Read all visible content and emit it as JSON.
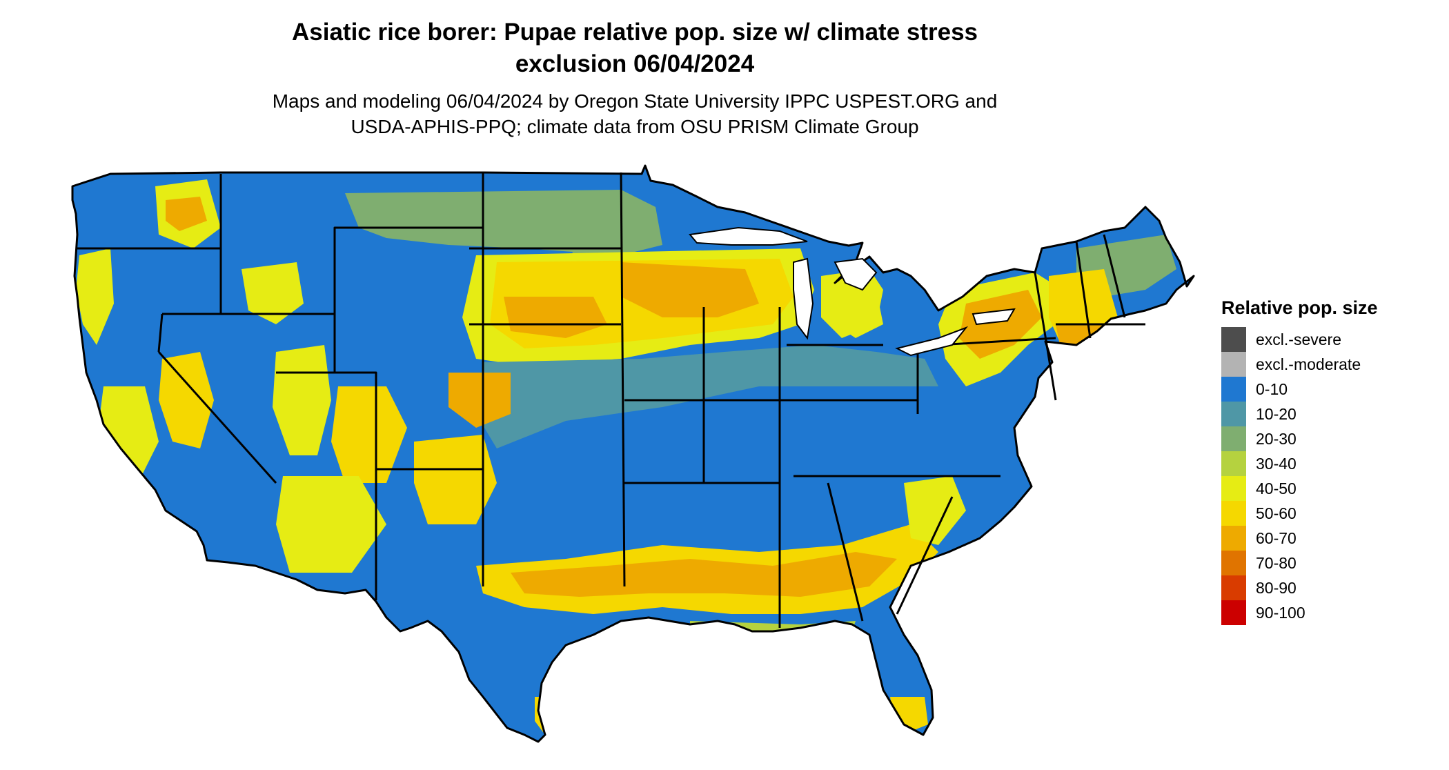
{
  "title": {
    "line1": "Asiatic rice borer: Pupae relative pop. size w/ climate stress",
    "line2": "exclusion 06/04/2024"
  },
  "subtitle": {
    "line1": "Maps and modeling 06/04/2024 by Oregon State University IPPC USPEST.ORG and",
    "line2": "USDA-APHIS-PPQ; climate data from OSU PRISM Climate Group"
  },
  "legend": {
    "title": "Relative pop. size",
    "items": [
      {
        "label": "excl.-severe",
        "color": "#4d4d4d"
      },
      {
        "label": "excl.-moderate",
        "color": "#b3b3b3"
      },
      {
        "label": "0-10",
        "color": "#1f78d1"
      },
      {
        "label": "10-20",
        "color": "#4f97a6"
      },
      {
        "label": "20-30",
        "color": "#7fae70"
      },
      {
        "label": "30-40",
        "color": "#b5d23f"
      },
      {
        "label": "40-50",
        "color": "#e6ec14"
      },
      {
        "label": "50-60",
        "color": "#f5d800"
      },
      {
        "label": "60-70",
        "color": "#eeaa00"
      },
      {
        "label": "70-80",
        "color": "#e07400"
      },
      {
        "label": "80-90",
        "color": "#d93c00"
      },
      {
        "label": "90-100",
        "color": "#cc0000"
      }
    ]
  },
  "map": {
    "base_color": "#1f78d1",
    "border_color": "#000000"
  }
}
